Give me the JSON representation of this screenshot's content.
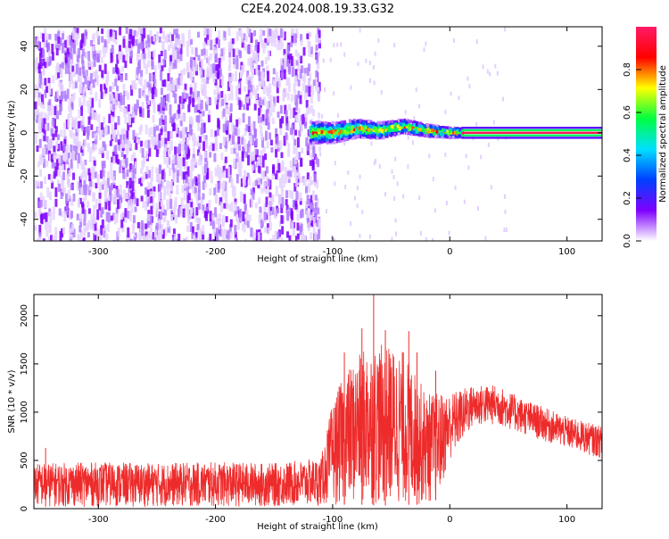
{
  "figure_title": "C2E4.2024.008.19.33.G32",
  "colors": {
    "snr_line": "#ee2b2b",
    "axis": "#000000",
    "background": "#ffffff",
    "colormap": [
      "#ffffff",
      "#7f00ff",
      "#0040ff",
      "#00e0ff",
      "#00ff40",
      "#ffff00",
      "#ff0000",
      "#ff1a66"
    ]
  },
  "chart_data": [
    {
      "type": "heatmap",
      "title": "",
      "xlabel": "Height of straight line (km)",
      "ylabel": "Frequency (Hz)",
      "xlim": [
        -355,
        130
      ],
      "ylim": [
        -50,
        49
      ],
      "xticks": [
        -300,
        -200,
        -100,
        0,
        100
      ],
      "xtick_labels": [
        "-300",
        "-200",
        "-100",
        "0",
        "100"
      ],
      "yticks": [
        -40,
        -20,
        0,
        20,
        40
      ],
      "ytick_labels": [
        "-40",
        "-20",
        "0",
        "20",
        "40"
      ],
      "grid": false,
      "colorbar": {
        "label": "Normalized spectral amplitude",
        "range": [
          0,
          1
        ],
        "ticks": [
          0.0,
          0.2,
          0.4,
          0.6,
          0.8
        ],
        "tick_labels": [
          "0.0",
          "0.2",
          "0.4",
          "0.6",
          "0.8"
        ]
      },
      "regions": [
        {
          "description_x_range": [
            -355,
            -112
          ],
          "freq_range": [
            -50,
            49
          ],
          "amplitude_range": [
            0.0,
            0.12
          ]
        },
        {
          "description_x_range": [
            -120,
            10
          ],
          "freq_range": [
            -6,
            8
          ],
          "amplitude_range": [
            0.2,
            0.95
          ]
        },
        {
          "description_x_range": [
            10,
            130
          ],
          "freq_range": [
            -1,
            1
          ],
          "amplitude_range": [
            0.9,
            1.0
          ]
        }
      ],
      "ridge": [
        {
          "x": -120,
          "f": 0
        },
        {
          "x": -100,
          "f": 0
        },
        {
          "x": -80,
          "f": 2
        },
        {
          "x": -60,
          "f": 1
        },
        {
          "x": -40,
          "f": 3
        },
        {
          "x": -20,
          "f": 1
        },
        {
          "x": 0,
          "f": 0
        },
        {
          "x": 10,
          "f": 0
        },
        {
          "x": 130,
          "f": 0
        }
      ]
    },
    {
      "type": "line",
      "title": "",
      "xlabel": "Height of straight line (km)",
      "ylabel": "SNR (10 * v/v)",
      "xlim": [
        -355,
        130
      ],
      "ylim": [
        0,
        2220
      ],
      "xticks": [
        -300,
        -200,
        -100,
        0,
        100
      ],
      "xtick_labels": [
        "-300",
        "-200",
        "-100",
        "0",
        "100"
      ],
      "yticks": [
        0,
        500,
        1000,
        1500,
        2000
      ],
      "ytick_labels": [
        "0",
        "500",
        "1000",
        "1500",
        "2000"
      ],
      "grid": false,
      "series": [
        {
          "color": "#ee2b2b",
          "envelope": [
            {
              "x": -355,
              "lo": 20,
              "hi": 470
            },
            {
              "x": -300,
              "lo": 20,
              "hi": 480
            },
            {
              "x": -250,
              "lo": 20,
              "hi": 470
            },
            {
              "x": -200,
              "lo": 20,
              "hi": 480
            },
            {
              "x": -150,
              "lo": 20,
              "hi": 470
            },
            {
              "x": -110,
              "lo": 30,
              "hi": 520
            },
            {
              "x": -100,
              "lo": 40,
              "hi": 1100
            },
            {
              "x": -90,
              "lo": 40,
              "hi": 1400
            },
            {
              "x": -70,
              "lo": 40,
              "hi": 1700
            },
            {
              "x": -60,
              "lo": 30,
              "hi": 1700
            },
            {
              "x": -40,
              "lo": 40,
              "hi": 1650
            },
            {
              "x": -20,
              "lo": 40,
              "hi": 1200
            },
            {
              "x": -10,
              "lo": 100,
              "hi": 1200
            },
            {
              "x": 0,
              "lo": 500,
              "hi": 1200
            },
            {
              "x": 20,
              "lo": 850,
              "hi": 1280
            },
            {
              "x": 40,
              "lo": 870,
              "hi": 1280
            },
            {
              "x": 60,
              "lo": 780,
              "hi": 1150
            },
            {
              "x": 80,
              "lo": 700,
              "hi": 1050
            },
            {
              "x": 100,
              "lo": 620,
              "hi": 950
            },
            {
              "x": 130,
              "lo": 520,
              "hi": 850
            }
          ],
          "spikes": [
            {
              "x": -345,
              "y": 630
            },
            {
              "x": -90,
              "y": 1620
            },
            {
              "x": -75,
              "y": 1870
            },
            {
              "x": -65,
              "y": 2220
            },
            {
              "x": -35,
              "y": 1840
            },
            {
              "x": -55,
              "y": 1850
            },
            {
              "x": -28,
              "y": 1620
            },
            {
              "x": -12,
              "y": 1430
            }
          ]
        }
      ]
    }
  ]
}
